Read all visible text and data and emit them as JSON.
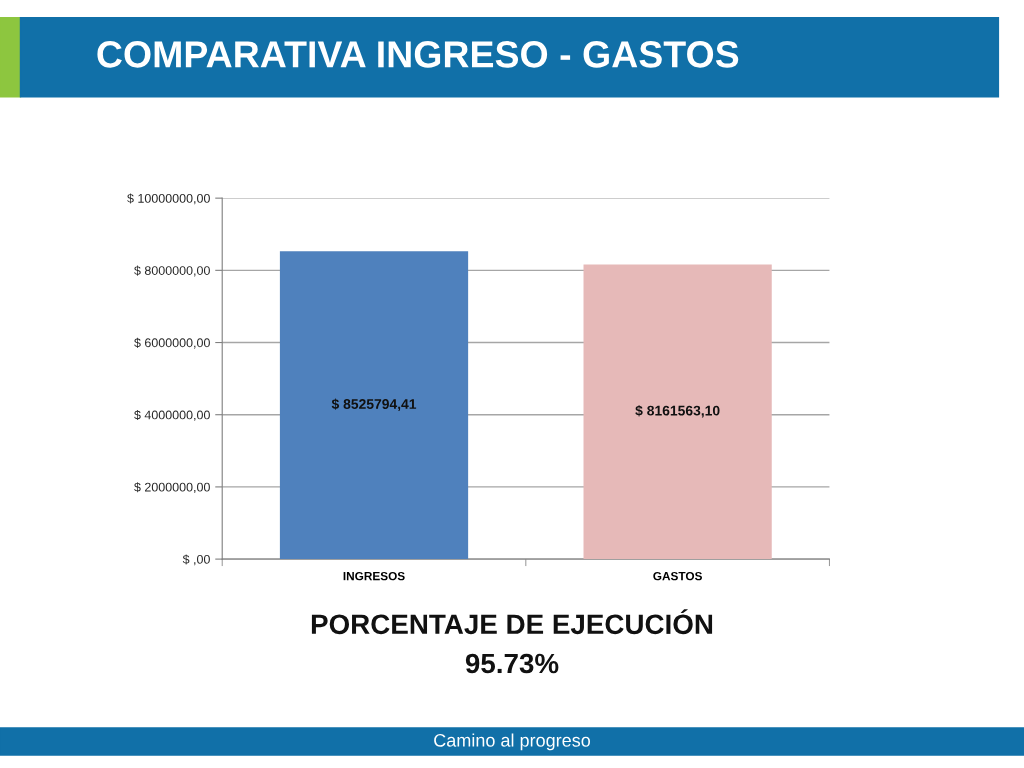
{
  "chart_data": {
    "type": "bar",
    "title": "COMPARATIVA INGRESO - GASTOS",
    "categories": [
      "INGRESOS",
      "GASTOS"
    ],
    "values": [
      8525794.41,
      8161563.1
    ],
    "colors": [
      "#4f81bd",
      "#e6b9b8"
    ],
    "value_labels": [
      "$ 8525794,41",
      "$ 8161563,10"
    ],
    "ylim": [
      0,
      10000000
    ],
    "yticks": [
      {
        "value": 0,
        "label": "$ ,00"
      },
      {
        "value": 2000000,
        "label": "$ 2000000,00"
      },
      {
        "value": 4000000,
        "label": "$ 4000000,00"
      },
      {
        "value": 6000000,
        "label": "$ 6000000,00"
      },
      {
        "value": 8000000,
        "label": "$ 8000000,00"
      },
      {
        "value": 10000000,
        "label": "$ 10000000,00"
      }
    ],
    "grid": "y",
    "annotations": [
      "PORCENTAJE DE EJECUCIÓN",
      "95.73%",
      "Camino al progreso"
    ]
  }
}
